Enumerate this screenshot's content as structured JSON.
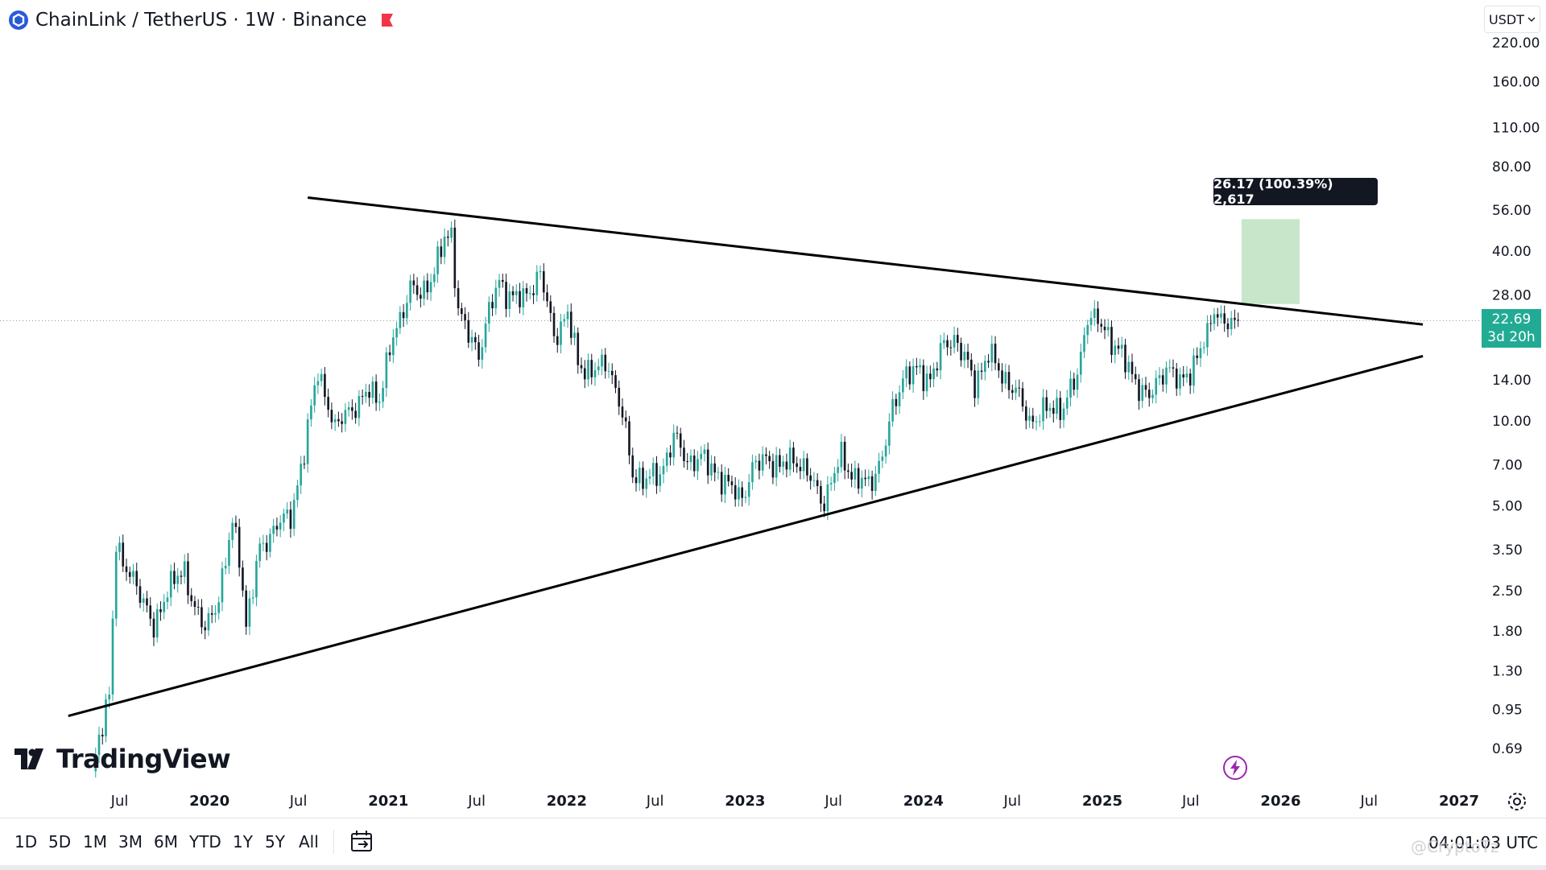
{
  "header": {
    "symbol": "ChainLink",
    "separator": "/",
    "quote": "TetherUS",
    "interval": "1W",
    "exchange": "Binance",
    "logo_icon": "chainlink-logo-icon",
    "flag_icon": "red-flag-icon",
    "title_full": "ChainLink / TetherUS · 1W · Binance"
  },
  "currency_button": {
    "label": "USDT",
    "icon": "chevron-down-icon"
  },
  "price_tag": {
    "price": "22.69",
    "countdown": "3d 20h",
    "color": "#22ab94"
  },
  "measure_label": "26.17 (100.39%) 2,617",
  "brand": "TradingView",
  "range_buttons": [
    "1D",
    "5D",
    "1M",
    "3M",
    "6M",
    "YTD",
    "1Y",
    "5Y",
    "All"
  ],
  "clock": "04:01:03 UTC",
  "watermark": "@CryptoTz",
  "colors": {
    "up": "#26a69a",
    "down": "#131722",
    "measure_box": "#c8e6c9",
    "trendline": "#000000"
  },
  "chart_data": {
    "type": "candlestick",
    "symbol": "LINK/USDT",
    "interval": "1W",
    "y_scale": "log",
    "ylim": [
      0.6,
      240
    ],
    "y_ticks": [
      "220.00",
      "160.00",
      "110.00",
      "80.00",
      "56.00",
      "40.00",
      "28.00",
      "14.00",
      "10.00",
      "7.00",
      "5.00",
      "3.50",
      "2.50",
      "1.80",
      "1.30",
      "0.95",
      "0.69"
    ],
    "x_ticks": [
      "Jul",
      "2020",
      "Jul",
      "2021",
      "Jul",
      "2022",
      "Jul",
      "2023",
      "Jul",
      "2024",
      "Jul",
      "2025",
      "Jul",
      "2026",
      "Jul",
      "2027"
    ],
    "x_tick_dates": [
      "2019-07-01",
      "2020-01-01",
      "2020-07-01",
      "2021-01-01",
      "2021-07-01",
      "2022-01-01",
      "2022-07-01",
      "2023-01-01",
      "2023-07-01",
      "2024-01-01",
      "2024-07-01",
      "2025-01-01",
      "2025-07-01",
      "2026-01-01",
      "2026-07-01",
      "2027-01-01"
    ],
    "last_price": 22.69,
    "price_path": [
      [
        "2019-05-06",
        0.55
      ],
      [
        "2019-06-10",
        1.1
      ],
      [
        "2019-06-24",
        3.8
      ],
      [
        "2019-07-08",
        3.0
      ],
      [
        "2019-08-05",
        2.7
      ],
      [
        "2019-09-09",
        1.8
      ],
      [
        "2019-10-07",
        2.6
      ],
      [
        "2019-11-11",
        2.9
      ],
      [
        "2019-12-02",
        2.2
      ],
      [
        "2019-12-23",
        1.8
      ],
      [
        "2020-01-20",
        2.4
      ],
      [
        "2020-02-17",
        4.3
      ],
      [
        "2020-03-02",
        3.4
      ],
      [
        "2020-03-16",
        1.9
      ],
      [
        "2020-04-13",
        3.5
      ],
      [
        "2020-05-18",
        4.3
      ],
      [
        "2020-06-15",
        4.6
      ],
      [
        "2020-07-13",
        7.8
      ],
      [
        "2020-08-10",
        15.5
      ],
      [
        "2020-08-24",
        12.5
      ],
      [
        "2020-09-14",
        9.2
      ],
      [
        "2020-10-05",
        11.0
      ],
      [
        "2020-11-02",
        11.2
      ],
      [
        "2020-11-23",
        13.2
      ],
      [
        "2020-12-14",
        12.0
      ],
      [
        "2021-01-11",
        20.0
      ],
      [
        "2021-02-15",
        29.5
      ],
      [
        "2021-03-08",
        28.0
      ],
      [
        "2021-04-05",
        34.0
      ],
      [
        "2021-04-26",
        44.0
      ],
      [
        "2021-05-10",
        46.0
      ],
      [
        "2021-05-24",
        25.0
      ],
      [
        "2021-06-14",
        20.0
      ],
      [
        "2021-07-05",
        17.5
      ],
      [
        "2021-07-26",
        24.5
      ],
      [
        "2021-08-16",
        31.0
      ],
      [
        "2021-09-06",
        28.0
      ],
      [
        "2021-10-04",
        27.0
      ],
      [
        "2021-11-08",
        33.5
      ],
      [
        "2021-12-06",
        20.0
      ],
      [
        "2022-01-03",
        24.0
      ],
      [
        "2022-01-24",
        16.0
      ],
      [
        "2022-02-21",
        15.0
      ],
      [
        "2022-03-28",
        16.0
      ],
      [
        "2022-04-25",
        10.5
      ],
      [
        "2022-05-16",
        6.5
      ],
      [
        "2022-06-13",
        6.2
      ],
      [
        "2022-07-11",
        6.5
      ],
      [
        "2022-08-08",
        8.8
      ],
      [
        "2022-09-05",
        7.2
      ],
      [
        "2022-10-03",
        7.4
      ],
      [
        "2022-11-07",
        6.5
      ],
      [
        "2022-11-21",
        6.0
      ],
      [
        "2022-12-26",
        5.4
      ],
      [
        "2023-01-16",
        6.7
      ],
      [
        "2023-02-13",
        7.5
      ],
      [
        "2023-03-13",
        6.8
      ],
      [
        "2023-04-10",
        7.5
      ],
      [
        "2023-05-08",
        6.5
      ],
      [
        "2023-06-12",
        5.2
      ],
      [
        "2023-06-26",
        6.0
      ],
      [
        "2023-07-17",
        7.6
      ],
      [
        "2023-08-14",
        6.2
      ],
      [
        "2023-09-11",
        6.0
      ],
      [
        "2023-10-09",
        7.4
      ],
      [
        "2023-10-30",
        11.0
      ],
      [
        "2023-11-20",
        14.5
      ],
      [
        "2023-12-18",
        15.0
      ],
      [
        "2024-01-15",
        14.2
      ],
      [
        "2024-02-12",
        18.5
      ],
      [
        "2024-03-04",
        19.8
      ],
      [
        "2024-03-25",
        16.8
      ],
      [
        "2024-04-15",
        13.5
      ],
      [
        "2024-05-13",
        17.5
      ],
      [
        "2024-06-10",
        14.5
      ],
      [
        "2024-07-08",
        12.8
      ],
      [
        "2024-08-05",
        10.0
      ],
      [
        "2024-09-09",
        11.0
      ],
      [
        "2024-10-14",
        11.3
      ],
      [
        "2024-11-11",
        14.5
      ],
      [
        "2024-12-02",
        24.0
      ],
      [
        "2024-12-16",
        23.0
      ],
      [
        "2025-01-06",
        21.0
      ],
      [
        "2025-02-03",
        18.0
      ],
      [
        "2025-03-03",
        14.5
      ],
      [
        "2025-04-07",
        12.0
      ],
      [
        "2025-05-12",
        15.8
      ],
      [
        "2025-06-09",
        13.5
      ],
      [
        "2025-07-07",
        16.0
      ],
      [
        "2025-08-04",
        20.0
      ],
      [
        "2025-08-18",
        25.5
      ],
      [
        "2025-09-01",
        23.0
      ],
      [
        "2025-09-22",
        21.5
      ],
      [
        "2025-10-06",
        22.69
      ]
    ],
    "trendlines": [
      {
        "name": "descending-resistance",
        "from": [
          "2020-07-20",
          62.0
        ],
        "to": [
          "2026-10-19",
          22.0
        ]
      },
      {
        "name": "ascending-support",
        "from": [
          "2019-03-18",
          0.9
        ],
        "to": [
          "2026-10-19",
          17.0
        ]
      }
    ],
    "reference_line": {
      "price": 22.69,
      "style": "dotted"
    },
    "measure_box": {
      "from_date": "2025-10-13",
      "to_date": "2026-02-09",
      "low": 26.0,
      "high": 52.0
    },
    "grid": false,
    "legend": "none"
  }
}
